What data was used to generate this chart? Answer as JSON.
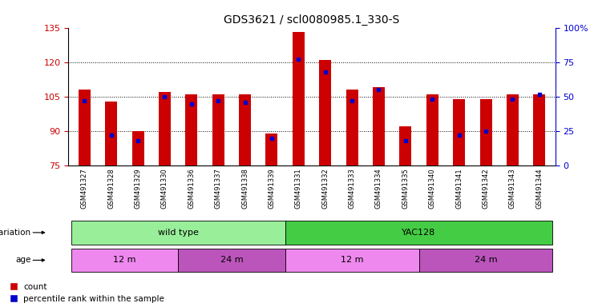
{
  "title": "GDS3621 / scl0080985.1_330-S",
  "samples": [
    "GSM491327",
    "GSM491328",
    "GSM491329",
    "GSM491330",
    "GSM491336",
    "GSM491337",
    "GSM491338",
    "GSM491339",
    "GSM491331",
    "GSM491332",
    "GSM491333",
    "GSM491334",
    "GSM491335",
    "GSM491340",
    "GSM491341",
    "GSM491342",
    "GSM491343",
    "GSM491344"
  ],
  "counts": [
    108,
    103,
    90,
    107,
    106,
    106,
    106,
    89,
    133,
    121,
    108,
    109,
    92,
    106,
    104,
    104,
    106,
    106
  ],
  "percentiles": [
    47,
    22,
    18,
    50,
    45,
    47,
    46,
    20,
    77,
    68,
    47,
    55,
    18,
    48,
    22,
    25,
    48,
    52
  ],
  "y_min": 75,
  "y_max": 135,
  "y_ticks": [
    75,
    90,
    105,
    120,
    135
  ],
  "y_right_ticks": [
    0,
    25,
    50,
    75,
    100
  ],
  "bar_color": "#cc0000",
  "dot_color": "#0000cc",
  "grid_color": "#000000",
  "bg_color": "#ffffff",
  "plot_bg": "#ffffff",
  "genotype_labels": [
    {
      "label": "wild type",
      "start": 0,
      "end": 8,
      "color": "#99ee99"
    },
    {
      "label": "YAC128",
      "start": 8,
      "end": 18,
      "color": "#44cc44"
    }
  ],
  "age_labels": [
    {
      "label": "12 m",
      "start": 0,
      "end": 4,
      "color": "#ee88ee"
    },
    {
      "label": "24 m",
      "start": 4,
      "end": 8,
      "color": "#bb55bb"
    },
    {
      "label": "12 m",
      "start": 8,
      "end": 13,
      "color": "#ee88ee"
    },
    {
      "label": "24 m",
      "start": 13,
      "end": 18,
      "color": "#bb55bb"
    }
  ],
  "legend_count_color": "#cc0000",
  "legend_pct_color": "#0000cc",
  "tick_label_color_left": "#cc0000",
  "tick_label_color_right": "#0000cc",
  "xtick_bg": "#dddddd"
}
